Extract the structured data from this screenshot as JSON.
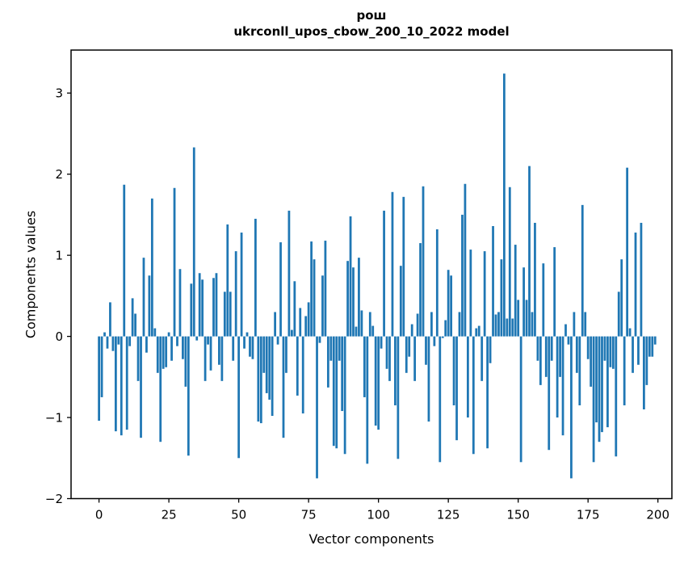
{
  "figure": {
    "title_line1": "рош",
    "title_line2": "ukrconll_upos_cbow_200_10_2022 model"
  },
  "chart_data": {
    "type": "bar",
    "title": "рош",
    "subtitle": "ukrconll_upos_cbow_200_10_2022 model",
    "xlabel": "Vector components",
    "ylabel": "Components values",
    "x_ticks": [
      0,
      25,
      50,
      75,
      100,
      125,
      150,
      175,
      200
    ],
    "y_ticks": [
      -2,
      -1,
      0,
      1,
      2,
      3
    ],
    "xlim": [
      -10,
      205
    ],
    "ylim": [
      -2,
      3.53
    ],
    "grid": false,
    "legend": false,
    "bar_color": "#1f77b4",
    "axis_color": "#000000",
    "n_components": 200,
    "values": [
      -1.04,
      -0.75,
      0.05,
      -0.15,
      0.42,
      -0.18,
      -1.17,
      -0.1,
      -1.22,
      1.87,
      -1.15,
      -0.12,
      0.47,
      0.28,
      -0.55,
      -1.25,
      0.97,
      -0.2,
      0.75,
      1.7,
      0.1,
      -0.45,
      -1.3,
      -0.4,
      -0.38,
      0.05,
      -0.3,
      1.83,
      -0.12,
      0.83,
      -0.28,
      -0.62,
      -1.47,
      0.65,
      2.33,
      -0.05,
      0.78,
      0.7,
      -0.55,
      -0.1,
      -0.42,
      0.72,
      0.78,
      -0.35,
      -0.55,
      0.55,
      1.38,
      0.55,
      -0.3,
      1.05,
      -1.5,
      1.28,
      -0.15,
      0.05,
      -0.25,
      -0.28,
      1.45,
      -1.05,
      -1.07,
      -0.45,
      -0.7,
      -0.78,
      -0.98,
      0.3,
      -0.1,
      1.16,
      -1.25,
      -0.45,
      1.55,
      0.08,
      0.68,
      -0.73,
      0.35,
      -0.95,
      0.25,
      0.42,
      1.17,
      0.95,
      -1.75,
      -0.08,
      0.75,
      1.18,
      -0.63,
      -0.3,
      -1.35,
      -1.38,
      -0.3,
      -0.92,
      -1.45,
      0.93,
      1.48,
      0.85,
      0.12,
      0.97,
      0.32,
      -0.75,
      -1.57,
      0.3,
      0.13,
      -1.1,
      -1.15,
      -0.15,
      1.55,
      -0.4,
      -0.55,
      1.78,
      -0.85,
      -1.51,
      0.87,
      1.72,
      -0.45,
      -0.25,
      0.15,
      -0.55,
      0.28,
      1.15,
      1.85,
      -0.35,
      -1.05,
      0.3,
      -0.12,
      1.32,
      -1.55,
      -0.02,
      0.2,
      0.82,
      0.75,
      -0.85,
      -1.28,
      0.3,
      1.5,
      1.88,
      -1.0,
      1.07,
      -1.45,
      0.1,
      0.13,
      -0.55,
      1.05,
      -1.38,
      -0.33,
      1.36,
      0.27,
      0.3,
      0.95,
      3.24,
      0.22,
      1.84,
      0.22,
      1.13,
      0.45,
      -1.55,
      0.85,
      0.45,
      2.1,
      0.3,
      1.4,
      -0.3,
      -0.6,
      0.9,
      -0.5,
      -1.4,
      -0.3,
      1.1,
      -1.0,
      -0.5,
      -1.22,
      0.15,
      -0.1,
      -1.75,
      0.3,
      -0.45,
      -0.85,
      1.62,
      0.3,
      -0.28,
      -0.62,
      -1.55,
      -1.06,
      -1.3,
      -1.18,
      -0.3,
      -1.12,
      -0.38,
      -0.4,
      -1.48,
      0.55,
      0.95,
      -0.85,
      2.08,
      0.1,
      -0.45,
      1.28,
      -0.35,
      1.4,
      -0.9,
      -0.6,
      -0.25,
      -0.25,
      -0.1
    ]
  }
}
